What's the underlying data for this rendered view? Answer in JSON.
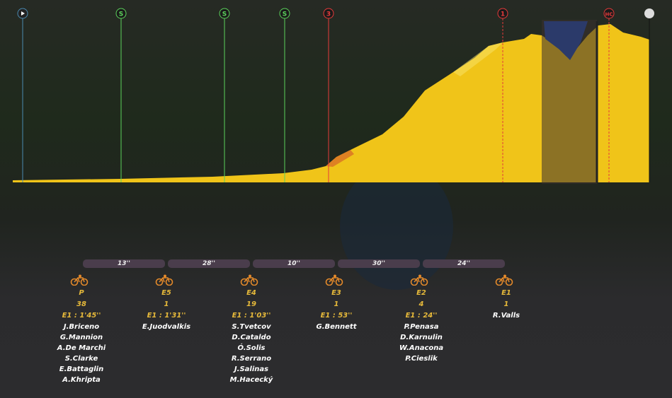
{
  "profile": {
    "markers": [
      "S",
      "S",
      "S",
      "3",
      "1",
      "HC"
    ]
  },
  "gaps": [
    "13''",
    "28''",
    "10''",
    "30''",
    "24''"
  ],
  "groups": [
    {
      "label": "P",
      "count": "38",
      "time": "E1 : 1'45''",
      "riders": [
        "J.Briceno",
        "G.Mannion",
        "A.De Marchi",
        "S.Clarke",
        "E.Battaglin",
        "A.Khripta"
      ]
    },
    {
      "label": "E5",
      "count": "1",
      "time": "E1 : 1'31''",
      "riders": [
        "E.Juodvalkis"
      ]
    },
    {
      "label": "E4",
      "count": "19",
      "time": "E1 : 1'03''",
      "riders": [
        "S.Tvetcov",
        "D.Cataldo",
        "Ó.Solis",
        "R.Serrano",
        "J.Salinas",
        "M.Hacecký"
      ]
    },
    {
      "label": "E3",
      "count": "1",
      "time": "E1 : 53''",
      "riders": [
        "G.Bennett"
      ]
    },
    {
      "label": "E2",
      "count": "4",
      "time": "E1 : 24''",
      "riders": [
        "P.Penasa",
        "D.Karnulin",
        "W.Anacona",
        "P.Cieslik"
      ]
    },
    {
      "label": "E1",
      "count": "1",
      "riders": [
        "R.Valls"
      ]
    }
  ]
}
